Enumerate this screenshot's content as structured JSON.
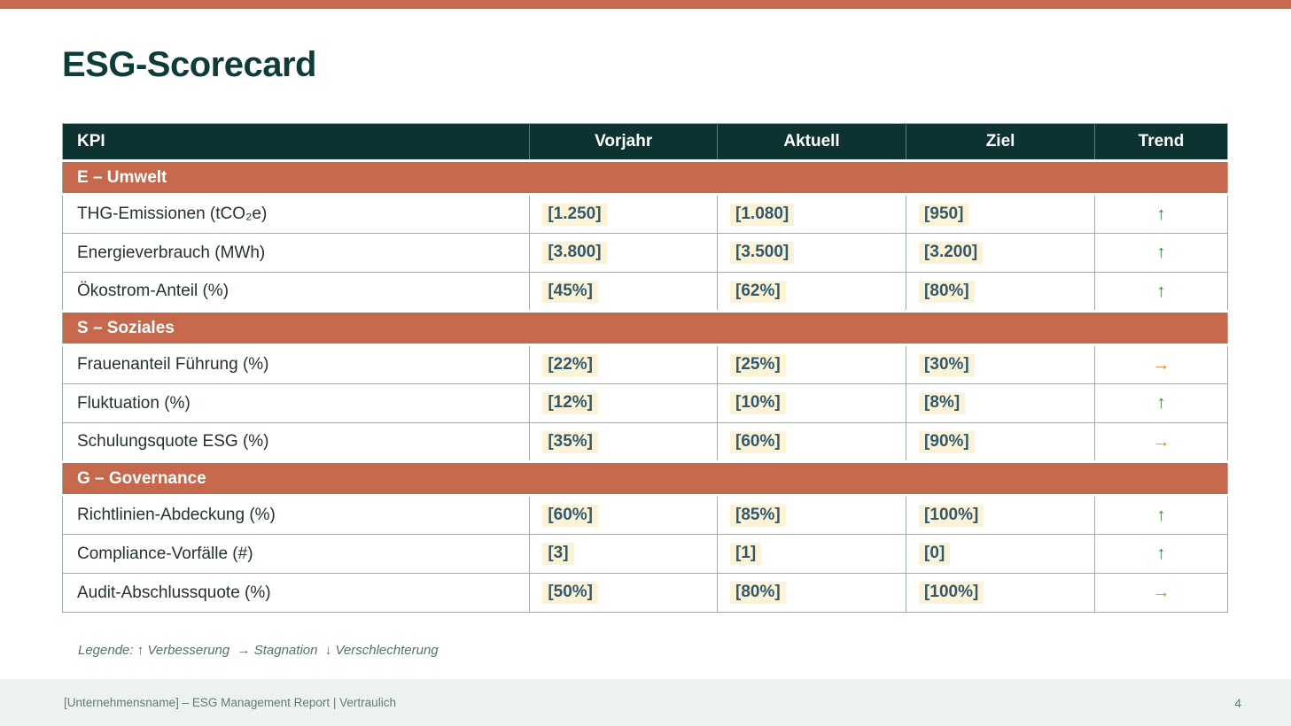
{
  "slide": {
    "title": "ESG-Scorecard"
  },
  "colors": {
    "accent_terracotta": "#C5684B",
    "header_teal": "#0C3231",
    "value_highlight": "#FCF2D6",
    "value_text": "#31596E",
    "trend_up_green": "#3A8142",
    "trend_right_orange": "#EE8A1C",
    "grid_line": "#9AAFA5",
    "footer_bg": "#EDF2F1"
  },
  "table": {
    "columns": [
      "KPI",
      "Vorjahr",
      "Aktuell",
      "Ziel",
      "Trend"
    ],
    "sections": [
      {
        "title": "E – Umwelt",
        "rows": [
          {
            "kpi": "THG-Emissionen (tCO₂e)",
            "vorjahr": "[1.250]",
            "aktuell": "[1.080]",
            "ziel": "[950]",
            "trend": "↑",
            "trend_class": "trend-up"
          },
          {
            "kpi": "Energieverbrauch (MWh)",
            "vorjahr": "[3.800]",
            "aktuell": "[3.500]",
            "ziel": "[3.200]",
            "trend": "↑",
            "trend_class": "trend-up"
          },
          {
            "kpi": "Ökostrom-Anteil (%)",
            "vorjahr": "[45%]",
            "aktuell": "[62%]",
            "ziel": "[80%]",
            "trend": "↑",
            "trend_class": "trend-up"
          }
        ]
      },
      {
        "title": "S – Soziales",
        "rows": [
          {
            "kpi": "Frauenanteil Führung (%)",
            "vorjahr": "[22%]",
            "aktuell": "[25%]",
            "ziel": "[30%]",
            "trend": "→",
            "trend_class": "trend-right"
          },
          {
            "kpi": "Fluktuation (%)",
            "vorjahr": "[12%]",
            "aktuell": "[10%]",
            "ziel": "[8%]",
            "trend": "↑",
            "trend_class": "trend-up"
          },
          {
            "kpi": "Schulungsquote ESG (%)",
            "vorjahr": "[35%]",
            "aktuell": "[60%]",
            "ziel": "[90%]",
            "trend": "→",
            "trend_class": "trend-right"
          }
        ]
      },
      {
        "title": "G – Governance",
        "rows": [
          {
            "kpi": "Richtlinien-Abdeckung (%)",
            "vorjahr": "[60%]",
            "aktuell": "[85%]",
            "ziel": "[100%]",
            "trend": "↑",
            "trend_class": "trend-up"
          },
          {
            "kpi": "Compliance-Vorfälle (#)",
            "vorjahr": "[3]",
            "aktuell": "[1]",
            "ziel": "[0]",
            "trend": "↑",
            "trend_class": "trend-up"
          },
          {
            "kpi": "Audit-Abschlussquote (%)",
            "vorjahr": "[50%]",
            "aktuell": "[80%]",
            "ziel": "[100%]",
            "trend": "→",
            "trend_class": "trend-right"
          }
        ]
      }
    ]
  },
  "legend": {
    "text": "Legende: ↑ Verbesserung  → Stagnation  ↓ Verschlechterung"
  },
  "footer": {
    "text": "[Unternehmensname] – ESG Management Report | Vertraulich",
    "page": "4"
  }
}
